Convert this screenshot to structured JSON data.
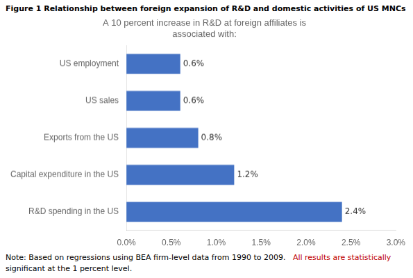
{
  "chart_data": {
    "type": "bar",
    "orientation": "horizontal",
    "title": "Figure 1 Relationship between foreign expansion of R&D  and domestic activities of US MNCs",
    "subtitle": "A 10 percent increase in R&D at foreign affiliates is\nassociated with:",
    "categories": [
      "US employment",
      "US sales",
      "Exports from the US",
      "Capital expenditure in the US",
      "R&D spending in the US"
    ],
    "values": [
      0.006,
      0.006,
      0.008,
      0.012,
      0.024
    ],
    "value_labels": [
      "0.6%",
      "0.6%",
      "0.8%",
      "1.2%",
      "2.4%"
    ],
    "data_labels": true,
    "color": "#4472C4",
    "xlim": [
      0,
      0.03
    ],
    "xticks": [
      {
        "value": 0.0,
        "label": "0.0%"
      },
      {
        "value": 0.005,
        "label": "0.5%"
      },
      {
        "value": 0.01,
        "label": "1.0%"
      },
      {
        "value": 0.015,
        "label": "1.5%"
      },
      {
        "value": 0.02,
        "label": "2.0%"
      },
      {
        "value": 0.025,
        "label": "2.5%"
      },
      {
        "value": 0.03,
        "label": "3.0%"
      }
    ],
    "grid": false,
    "annotations": [
      {
        "text": "Note: Based on regressions using BEA firm-level data from 1990 to 2009.  ",
        "color": "#000000"
      },
      {
        "text": "All results are statistically",
        "color": "#C00000"
      },
      {
        "text": "significant at the 1 percent level.",
        "color": "#000000"
      }
    ]
  }
}
